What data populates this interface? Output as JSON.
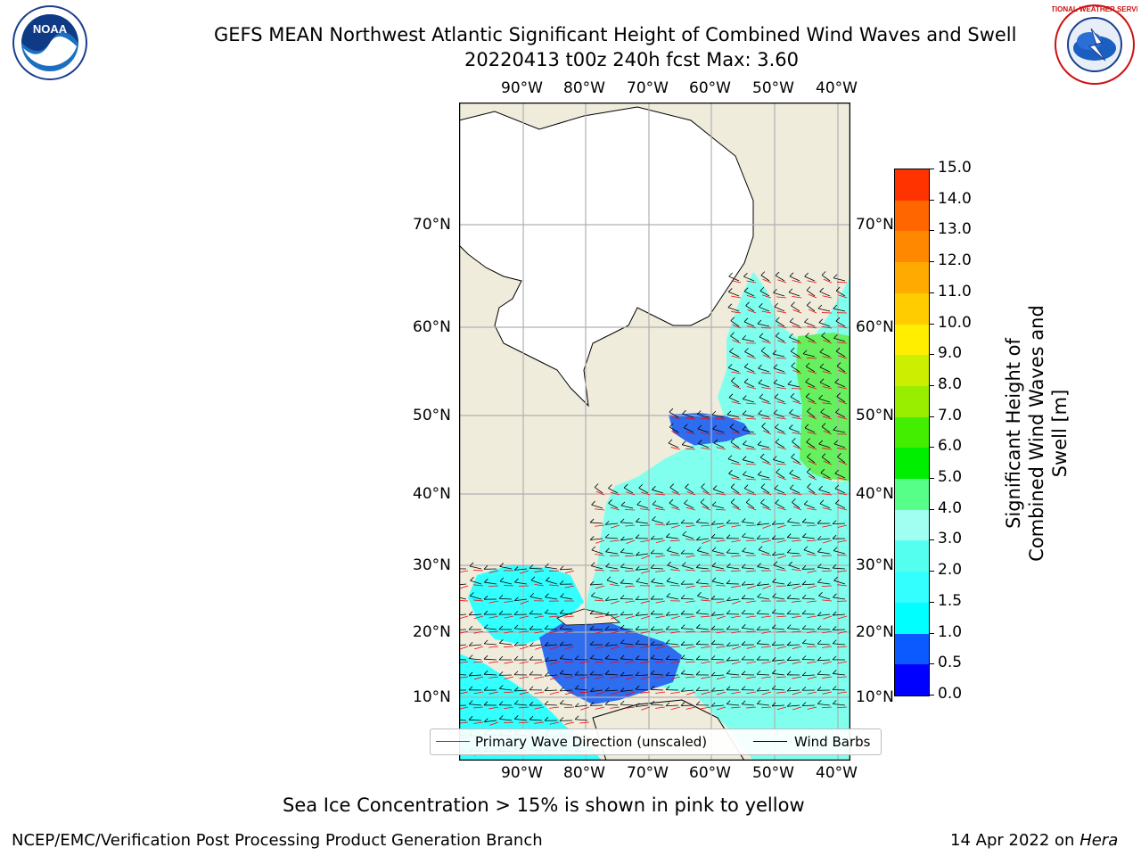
{
  "title": {
    "line1": "GEFS MEAN Northwest Atlantic Significant Height of Combined Wind Waves and Swell",
    "line2": "20220413 t00z 240h fcst   Max: 3.60"
  },
  "logos": {
    "left_text": "NOAA",
    "right_text": "NATIONAL WEATHER SERVICE"
  },
  "map": {
    "lon_labels": [
      "90°W",
      "80°W",
      "70°W",
      "60°W",
      "50°W",
      "40°W"
    ],
    "lat_labels": [
      "70°N",
      "60°N",
      "50°N",
      "40°N",
      "30°N",
      "20°N",
      "10°N"
    ],
    "colors": {
      "land": "#efecdc",
      "ice": "#ffffff",
      "grid": "#b0b0b0",
      "ocean_low": "#33ffff",
      "ocean_mid": "#80ffee",
      "ocean_shallow": "#2e6cf0",
      "ocean_swell": "#66f060",
      "wave_arrow": "#ff0000",
      "wind_barb": "#000000"
    }
  },
  "colorbar": {
    "label": "Significant Height of Combined Wind Waves and Swell [m]",
    "ticks": [
      "0.0",
      "0.5",
      "1.0",
      "1.5",
      "2.0",
      "3.0",
      "4.0",
      "5.0",
      "6.0",
      "7.0",
      "8.0",
      "9.0",
      "10.0",
      "11.0",
      "12.0",
      "13.0",
      "14.0",
      "15.0"
    ],
    "colors": [
      "#0000ff",
      "#0a5aff",
      "#00ffff",
      "#33ffff",
      "#55fff0",
      "#a0fff0",
      "#55ff88",
      "#00ee00",
      "#44ee00",
      "#99ee00",
      "#ccee00",
      "#ffee00",
      "#ffcc00",
      "#ffaa00",
      "#ff8800",
      "#ff6600",
      "#ff3300",
      "#ff0000"
    ]
  },
  "legend": {
    "wave_label": "Primary Wave Direction (unscaled)",
    "wind_label": "Wind Barbs"
  },
  "note": "Sea Ice Concentration > 15% is shown in pink to yellow",
  "footer": {
    "left": "NCEP/EMC/Verification Post Processing Product Generation Branch",
    "right_date": "14 Apr 2022 on",
    "right_host": "Hera"
  }
}
